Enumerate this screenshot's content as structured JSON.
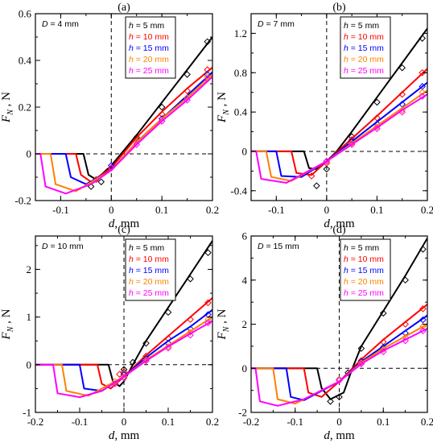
{
  "chart_data": [
    {
      "type": "line",
      "panel_label": "(a)",
      "param_label": "D = 4 mm",
      "xlabel": "d, mm",
      "ylabel": "F_N , N",
      "xlim": [
        -0.15,
        0.2
      ],
      "ylim": [
        -0.2,
        0.6
      ],
      "xticks": [
        -0.1,
        0,
        0.1,
        0.2
      ],
      "xtick_labels": [
        "-0.1",
        "0",
        "0.1",
        "0.2"
      ],
      "yticks": [
        -0.2,
        0,
        0.2,
        0.4,
        0.6
      ],
      "ytick_labels": [
        "-0.2",
        "0",
        "0.2",
        "0.4",
        "0.6"
      ],
      "legend_position": "top-right",
      "series": [
        {
          "name": "h = 5 mm",
          "color": "#000000",
          "line": {
            "x": [
              -0.15,
              -0.055,
              -0.045,
              -0.03,
              0,
              0.05,
              0.1,
              0.15,
              0.2
            ],
            "y": [
              0,
              0,
              -0.09,
              -0.11,
              -0.05,
              0.08,
              0.22,
              0.36,
              0.5
            ]
          },
          "markers": {
            "x": [
              -0.04,
              -0.02,
              0,
              0.05,
              0.1,
              0.15,
              0.19
            ],
            "y": [
              -0.14,
              -0.12,
              -0.06,
              0.07,
              0.2,
              0.34,
              0.48
            ]
          }
        },
        {
          "name": "h = 10 mm",
          "color": "#ff0000",
          "line": {
            "x": [
              -0.15,
              -0.07,
              -0.06,
              -0.04,
              0,
              0.05,
              0.1,
              0.15,
              0.2
            ],
            "y": [
              0,
              0,
              -0.09,
              -0.12,
              -0.06,
              0.07,
              0.18,
              0.28,
              0.37
            ]
          },
          "markers": {
            "x": [
              -0.03,
              0,
              0.05,
              0.1,
              0.15,
              0.19
            ],
            "y": [
              -0.11,
              -0.06,
              0.06,
              0.17,
              0.27,
              0.36
            ]
          }
        },
        {
          "name": "h = 15 mm",
          "color": "#0000ff",
          "line": {
            "x": [
              -0.15,
              -0.09,
              -0.08,
              -0.05,
              0,
              0.05,
              0.1,
              0.15,
              0.2
            ],
            "y": [
              0,
              0,
              -0.1,
              -0.13,
              -0.07,
              0.05,
              0.15,
              0.25,
              0.35
            ]
          },
          "markers": {
            "x": [
              0,
              0.05,
              0.1,
              0.15,
              0.19
            ],
            "y": [
              -0.05,
              0.05,
              0.15,
              0.24,
              0.34
            ]
          }
        },
        {
          "name": "h = 20 mm",
          "color": "#ff8000",
          "line": {
            "x": [
              -0.15,
              -0.12,
              -0.11,
              -0.07,
              0,
              0.05,
              0.1,
              0.15,
              0.2
            ],
            "y": [
              0,
              0,
              -0.13,
              -0.16,
              -0.07,
              0.05,
              0.15,
              0.24,
              0.34
            ]
          },
          "markers": {
            "x": [
              0,
              0.05,
              0.1,
              0.15,
              0.19
            ],
            "y": [
              -0.06,
              0.05,
              0.14,
              0.24,
              0.33
            ]
          }
        },
        {
          "name": "h = 25 mm",
          "color": "#ff00ff",
          "line": {
            "x": [
              -0.15,
              -0.14,
              -0.13,
              -0.09,
              -0.04,
              0,
              0.05,
              0.1,
              0.15,
              0.2
            ],
            "y": [
              0,
              0,
              -0.14,
              -0.17,
              -0.13,
              -0.07,
              0.04,
              0.14,
              0.23,
              0.33
            ]
          },
          "markers": {
            "x": [
              0,
              0.05,
              0.1,
              0.15,
              0.19
            ],
            "y": [
              -0.06,
              0.04,
              0.14,
              0.23,
              0.32
            ]
          }
        }
      ]
    },
    {
      "type": "line",
      "panel_label": "(b)",
      "param_label": "D = 7 mm",
      "xlabel": "d, mm",
      "ylabel": "F_N , N",
      "xlim": [
        -0.15,
        0.2
      ],
      "ylim": [
        -0.5,
        1.4
      ],
      "xticks": [
        -0.1,
        0,
        0.1,
        0.2
      ],
      "xtick_labels": [
        "-0.1",
        "0",
        "0.1",
        "0.2"
      ],
      "yticks": [
        -0.4,
        0,
        0.4,
        0.8,
        1.2
      ],
      "ytick_labels": [
        "-0.4",
        "0",
        "0.4",
        "0.8",
        "1.2"
      ],
      "legend_position": "top-right",
      "series": [
        {
          "name": "h = 5 mm",
          "color": "#000000",
          "line": {
            "x": [
              -0.15,
              -0.045,
              -0.035,
              -0.02,
              0,
              0.02,
              0.05,
              0.1,
              0.15,
              0.2
            ],
            "y": [
              0,
              0,
              -0.17,
              -0.18,
              -0.1,
              0,
              0.2,
              0.55,
              0.9,
              1.25
            ]
          },
          "markers": {
            "x": [
              -0.02,
              0,
              0.05,
              0.1,
              0.15,
              0.19
            ],
            "y": [
              -0.35,
              -0.18,
              0.15,
              0.5,
              0.85,
              1.15
            ]
          }
        },
        {
          "name": "h = 10 mm",
          "color": "#ff0000",
          "line": {
            "x": [
              -0.15,
              -0.07,
              -0.06,
              -0.03,
              0,
              0.05,
              0.1,
              0.15,
              0.2
            ],
            "y": [
              0,
              0,
              -0.22,
              -0.24,
              -0.1,
              0.13,
              0.36,
              0.6,
              0.84
            ]
          },
          "markers": {
            "x": [
              -0.03,
              0,
              0.05,
              0.1,
              0.15,
              0.19
            ],
            "y": [
              -0.25,
              -0.12,
              0.12,
              0.34,
              0.58,
              0.8
            ]
          }
        },
        {
          "name": "h = 15 mm",
          "color": "#0000ff",
          "line": {
            "x": [
              -0.15,
              -0.1,
              -0.09,
              -0.05,
              0,
              0.05,
              0.1,
              0.15,
              0.2
            ],
            "y": [
              0,
              0,
              -0.25,
              -0.26,
              -0.1,
              0.1,
              0.3,
              0.5,
              0.7
            ]
          },
          "markers": {
            "x": [
              0,
              0.05,
              0.1,
              0.15,
              0.19
            ],
            "y": [
              -0.1,
              0.1,
              0.28,
              0.48,
              0.66
            ]
          }
        },
        {
          "name": "h = 20 mm",
          "color": "#ff8000",
          "line": {
            "x": [
              -0.15,
              -0.12,
              -0.11,
              -0.07,
              0,
              0.05,
              0.1,
              0.15,
              0.2
            ],
            "y": [
              0,
              0,
              -0.26,
              -0.3,
              -0.1,
              0.08,
              0.26,
              0.44,
              0.62
            ]
          },
          "markers": {
            "x": [
              0,
              0.05,
              0.1,
              0.15,
              0.19
            ],
            "y": [
              -0.1,
              0.08,
              0.25,
              0.42,
              0.6
            ]
          }
        },
        {
          "name": "h = 25 mm",
          "color": "#ff00ff",
          "line": {
            "x": [
              -0.15,
              -0.14,
              -0.13,
              -0.08,
              0,
              0.05,
              0.1,
              0.15,
              0.2
            ],
            "y": [
              0,
              0,
              -0.28,
              -0.32,
              -0.1,
              0.07,
              0.24,
              0.42,
              0.58
            ]
          },
          "markers": {
            "x": [
              0,
              0.05,
              0.1,
              0.15,
              0.19
            ],
            "y": [
              -0.1,
              0.07,
              0.23,
              0.4,
              0.56
            ]
          }
        }
      ]
    },
    {
      "type": "line",
      "panel_label": "(c)",
      "param_label": "D = 10 mm",
      "xlabel": "d, mm",
      "ylabel": "F_N , N",
      "xlim": [
        -0.2,
        0.2
      ],
      "ylim": [
        -1,
        2.7
      ],
      "xticks": [
        -0.2,
        -0.1,
        0,
        0.1,
        0.2
      ],
      "xtick_labels": [
        "-0.2",
        "-0.1",
        "0",
        "0.1",
        "0.2"
      ],
      "yticks": [
        -1,
        0,
        1,
        2
      ],
      "ytick_labels": [
        "-1",
        "0",
        "1",
        "2"
      ],
      "legend_position": "top-right",
      "series": [
        {
          "name": "h = 5 mm",
          "color": "#000000",
          "line": {
            "x": [
              -0.2,
              -0.035,
              -0.025,
              -0.01,
              0,
              0.02,
              0.05,
              0.1,
              0.15,
              0.2
            ],
            "y": [
              0,
              0,
              -0.35,
              -0.45,
              -0.35,
              0,
              0.5,
              1.2,
              1.9,
              2.6
            ]
          },
          "markers": {
            "x": [
              0,
              0.02,
              0.05,
              0.1,
              0.15,
              0.19
            ],
            "y": [
              -0.1,
              0.05,
              0.45,
              1.1,
              1.8,
              2.35
            ]
          }
        },
        {
          "name": "h = 10 mm",
          "color": "#ff0000",
          "line": {
            "x": [
              -0.2,
              -0.06,
              -0.05,
              -0.03,
              0,
              0.05,
              0.1,
              0.15,
              0.2
            ],
            "y": [
              0,
              0,
              -0.4,
              -0.5,
              -0.25,
              0.2,
              0.6,
              1.0,
              1.4
            ]
          },
          "markers": {
            "x": [
              -0.01,
              0,
              0.05,
              0.1,
              0.15,
              0.19
            ],
            "y": [
              -0.2,
              -0.15,
              0.18,
              0.55,
              0.95,
              1.3
            ]
          }
        },
        {
          "name": "h = 15 mm",
          "color": "#0000ff",
          "line": {
            "x": [
              -0.2,
              -0.1,
              -0.09,
              -0.05,
              0,
              0.05,
              0.1,
              0.15,
              0.2
            ],
            "y": [
              0,
              0,
              -0.5,
              -0.55,
              -0.25,
              0.15,
              0.5,
              0.8,
              1.15
            ]
          },
          "markers": {
            "x": [
              0,
              0.05,
              0.1,
              0.15,
              0.19
            ],
            "y": [
              -0.2,
              0.12,
              0.45,
              0.75,
              1.05
            ]
          }
        },
        {
          "name": "h = 20 mm",
          "color": "#ff8000",
          "line": {
            "x": [
              -0.2,
              -0.14,
              -0.13,
              -0.08,
              0,
              0.05,
              0.1,
              0.15,
              0.2
            ],
            "y": [
              0,
              0,
              -0.55,
              -0.65,
              -0.25,
              0.1,
              0.4,
              0.7,
              1.0
            ]
          },
          "markers": {
            "x": [
              -0.02,
              0,
              0.05,
              0.1,
              0.15,
              0.19
            ],
            "y": [
              -0.35,
              -0.25,
              0.1,
              0.38,
              0.68,
              0.95
            ]
          }
        },
        {
          "name": "h = 25 mm",
          "color": "#ff00ff",
          "line": {
            "x": [
              -0.2,
              -0.16,
              -0.15,
              -0.1,
              -0.05,
              0,
              0.05,
              0.1,
              0.15,
              0.2
            ],
            "y": [
              0,
              0,
              -0.6,
              -0.68,
              -0.55,
              -0.25,
              0.08,
              0.38,
              0.65,
              0.92
            ]
          },
          "markers": {
            "x": [
              -0.02,
              0,
              0.05,
              0.1,
              0.15,
              0.19
            ],
            "y": [
              -0.4,
              -0.28,
              0.08,
              0.35,
              0.62,
              0.88
            ]
          }
        }
      ]
    },
    {
      "type": "line",
      "panel_label": "(d)",
      "param_label": "D = 15 mm",
      "xlabel": "d, mm",
      "ylabel": "F_N , N",
      "xlim": [
        -0.2,
        0.2
      ],
      "ylim": [
        -2,
        6
      ],
      "xticks": [
        -0.2,
        -0.1,
        0,
        0.1,
        0.2
      ],
      "xtick_labels": [
        "-0.2",
        "-0.1",
        "0",
        "0.1",
        "0.2"
      ],
      "yticks": [
        -2,
        0,
        2,
        4,
        6
      ],
      "ytick_labels": [
        "-2",
        "0",
        "2",
        "4",
        "6"
      ],
      "legend_position": "top-right",
      "series": [
        {
          "name": "h = 5 mm",
          "color": "#000000",
          "line": {
            "x": [
              -0.2,
              -0.05,
              -0.04,
              -0.02,
              0.01,
              0.03,
              0.05,
              0.1,
              0.15,
              0.2
            ],
            "y": [
              0,
              0,
              -0.9,
              -1.4,
              -1.1,
              0,
              1.0,
              2.6,
              4.2,
              5.9
            ]
          },
          "markers": {
            "x": [
              -0.02,
              0,
              0.02,
              0.05,
              0.1,
              0.15,
              0.19
            ],
            "y": [
              -1.5,
              -1.3,
              -0.2,
              0.9,
              2.5,
              4.0,
              5.4
            ]
          }
        },
        {
          "name": "h = 10 mm",
          "color": "#ff0000",
          "line": {
            "x": [
              -0.2,
              -0.08,
              -0.07,
              -0.04,
              0,
              0.05,
              0.1,
              0.15,
              0.2
            ],
            "y": [
              0,
              0,
              -1.1,
              -1.3,
              -0.6,
              0.4,
              1.3,
              2.1,
              2.9
            ]
          },
          "markers": {
            "x": [
              0,
              0.05,
              0.1,
              0.15,
              0.19
            ],
            "y": [
              -0.5,
              0.35,
              1.2,
              2.0,
              2.7
            ]
          }
        },
        {
          "name": "h = 15 mm",
          "color": "#0000ff",
          "line": {
            "x": [
              -0.2,
              -0.12,
              -0.11,
              -0.08,
              0,
              0.05,
              0.1,
              0.15,
              0.2
            ],
            "y": [
              0,
              0,
              -1.3,
              -1.45,
              -0.6,
              0.3,
              1.0,
              1.7,
              2.4
            ]
          },
          "markers": {
            "x": [
              0,
              0.05,
              0.1,
              0.15,
              0.19
            ],
            "y": [
              -0.5,
              0.3,
              0.95,
              1.6,
              2.2
            ]
          }
        },
        {
          "name": "h = 20 mm",
          "color": "#ff8000",
          "line": {
            "x": [
              -0.2,
              -0.15,
              -0.14,
              -0.1,
              0,
              0.05,
              0.1,
              0.15,
              0.2
            ],
            "y": [
              0,
              0,
              -1.4,
              -1.6,
              -0.6,
              0.25,
              0.9,
              1.45,
              2.0
            ]
          },
          "markers": {
            "x": [
              0,
              0.05,
              0.1,
              0.15,
              0.19
            ],
            "y": [
              -0.5,
              0.25,
              0.85,
              1.4,
              1.9
            ]
          }
        },
        {
          "name": "h = 25 mm",
          "color": "#ff00ff",
          "line": {
            "x": [
              -0.2,
              -0.19,
              -0.18,
              -0.14,
              -0.08,
              0,
              0.05,
              0.1,
              0.15,
              0.2
            ],
            "y": [
              0,
              0,
              -1.5,
              -1.7,
              -1.4,
              -0.6,
              0.2,
              0.8,
              1.3,
              1.8
            ]
          },
          "markers": {
            "x": [
              0,
              0.05,
              0.1,
              0.15,
              0.19
            ],
            "y": [
              -0.55,
              0.2,
              0.75,
              1.25,
              1.7
            ]
          }
        }
      ]
    }
  ]
}
